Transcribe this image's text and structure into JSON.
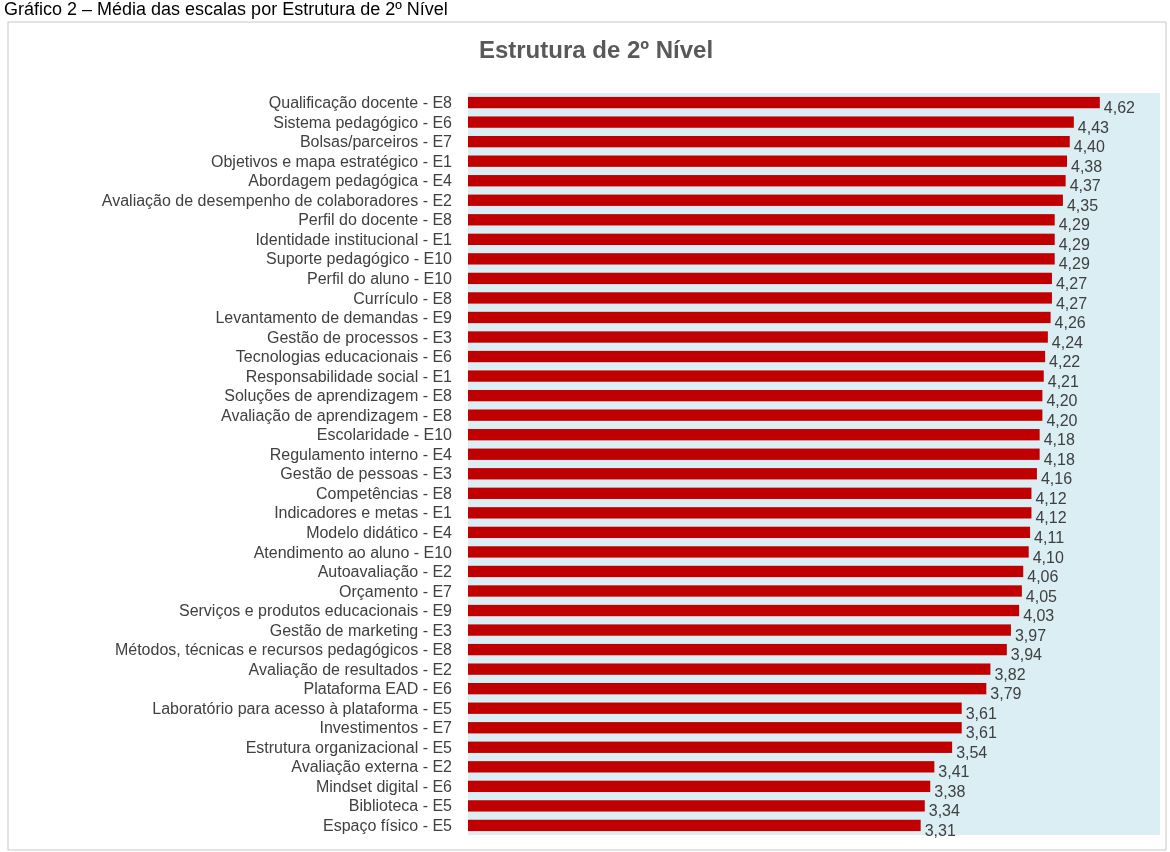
{
  "chart_data": {
    "type": "bar",
    "orientation": "horizontal",
    "title": "Estrutura de 2º Nível",
    "annotations": [
      "Gráfico 2 – Média das escalas por Estrutura de 2º Nível"
    ],
    "categories": [
      "Qualificação docente - E8",
      "Sistema pedagógico - E6",
      "Bolsas/parceiros - E7",
      "Objetivos e mapa estratégico - E1",
      "Abordagem pedagógica - E4",
      "Avaliação de desempenho de colaboradores - E2",
      "Perfil do docente - E8",
      "Identidade institucional - E1",
      "Suporte pedagógico - E10",
      "Perfil do aluno - E10",
      "Currículo - E8",
      "Levantamento de demandas - E9",
      "Gestão de processos - E3",
      "Tecnologias educacionais - E6",
      "Responsabilidade social - E1",
      "Soluções de aprendizagem - E8",
      "Avaliação de aprendizagem - E8",
      "Escolaridade - E10",
      "Regulamento interno - E4",
      "Gestão de pessoas - E3",
      "Competências - E8",
      "Indicadores e metas - E1",
      "Modelo didático - E4",
      "Atendimento ao aluno - E10",
      "Autoavaliação - E2",
      "Orçamento - E7",
      "Serviços e produtos educacionais - E9",
      "Gestão de marketing - E3",
      "Métodos, técnicas e recursos pedagógicos - E8",
      "Avaliação de resultados - E2",
      "Plataforma EAD - E6",
      "Laboratório para acesso à plataforma - E5",
      "Investimentos - E7",
      "Estrutura organizacional - E5",
      "Avaliação externa - E2",
      "Mindset digital - E6",
      "Biblioteca - E5",
      "Espaço físico - E5"
    ],
    "values": [
      4.62,
      4.43,
      4.4,
      4.38,
      4.37,
      4.35,
      4.29,
      4.29,
      4.29,
      4.27,
      4.27,
      4.26,
      4.24,
      4.22,
      4.21,
      4.2,
      4.2,
      4.18,
      4.18,
      4.16,
      4.12,
      4.12,
      4.11,
      4.1,
      4.06,
      4.05,
      4.03,
      3.97,
      3.94,
      3.82,
      3.79,
      3.61,
      3.61,
      3.54,
      3.41,
      3.38,
      3.34,
      3.31
    ],
    "value_labels": [
      "4,62",
      "4,43",
      "4,40",
      "4,38",
      "4,37",
      "4,35",
      "4,29",
      "4,29",
      "4,29",
      "4,27",
      "4,27",
      "4,26",
      "4,24",
      "4,22",
      "4,21",
      "4,20",
      "4,20",
      "4,18",
      "4,18",
      "4,16",
      "4,12",
      "4,12",
      "4,11",
      "4,10",
      "4,06",
      "4,05",
      "4,03",
      "3,97",
      "3,94",
      "3,82",
      "3,79",
      "3,61",
      "3,61",
      "3,54",
      "3,41",
      "3,38",
      "3,34",
      "3,31"
    ],
    "color": "#c00000",
    "xlim": [
      0,
      5.06
    ],
    "tick_labels": "y"
  }
}
